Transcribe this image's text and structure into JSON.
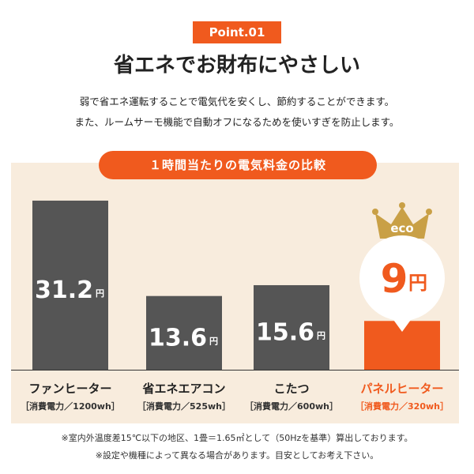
{
  "point_label": "Point.01",
  "headline": "省エネでお財布にやさしい",
  "description": [
    "弱で省エネ運転することで電気代を安くし、節約することができます。",
    "また、ルームサーモ機能で自動オフになるためを使いすぎを防止します。"
  ],
  "footnotes": [
    "※室内外温度差15℃以下の地区、1畳＝1.65㎡として（50Hzを基準）算出しております。",
    "※設定や機種によって異なる場合があります。目安としてお考え下さい。"
  ],
  "chart_data": {
    "type": "bar",
    "title": "１時間当たりの電気料金の比較",
    "unit": "円",
    "categories": [
      "ファンヒーター",
      "省エネエアコン",
      "こたつ",
      "パネルヒーター"
    ],
    "sublabels": [
      "［消費電力／1200wh］",
      "［消費電力／525wh］",
      "［消費電力／600wh］",
      "［消費電力／320wh］"
    ],
    "values": [
      31.2,
      13.6,
      15.6,
      9
    ],
    "value_labels": [
      "31.2",
      "13.6",
      "15.6",
      "9"
    ],
    "highlight_index": 3,
    "highlight_badge": "eco",
    "colors": {
      "bar": "#555555",
      "highlight": "#f05a1e",
      "crown": "#c9a046"
    }
  }
}
